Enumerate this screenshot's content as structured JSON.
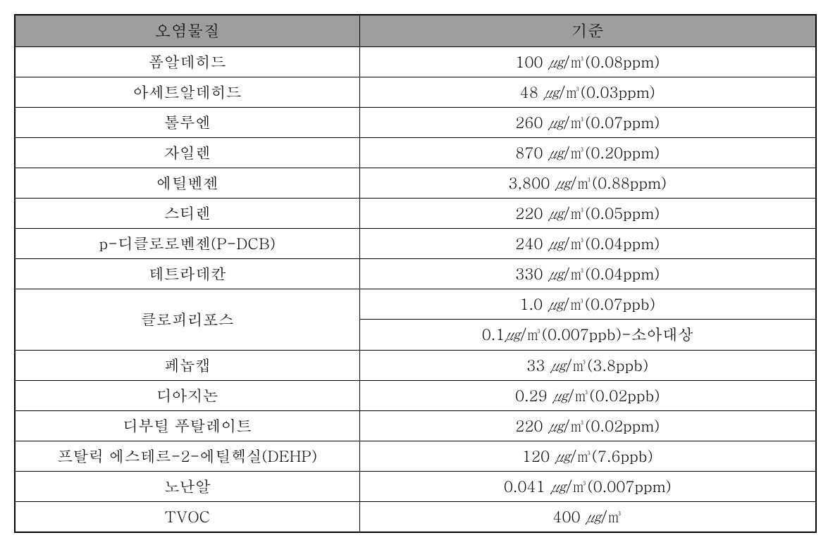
{
  "table": {
    "header_bg": "#9e9e9e",
    "border_color": "#000000",
    "columns": [
      {
        "key": "pollutant",
        "label": "오염물질",
        "width_pct": 43
      },
      {
        "key": "standard",
        "label": "기준",
        "width_pct": 57
      }
    ],
    "rows_flat": [
      {
        "pollutant": "폼알데히드",
        "value": "100",
        "unit": "㎍/㎥",
        "extra": "(0.08ppm)"
      },
      {
        "pollutant": "아세트알데히드",
        "value": "48",
        "unit": "㎍/㎥",
        "extra": "(0.03ppm)"
      },
      {
        "pollutant": "톨루엔",
        "value": "260",
        "unit": "㎍/㎥",
        "extra": "(0.07ppm)"
      },
      {
        "pollutant": "자일렌",
        "value": "870",
        "unit": "㎍/㎥",
        "extra": "(0.20ppm)"
      },
      {
        "pollutant": "에틸벤젠",
        "value": "3,800",
        "unit": "㎍/㎥",
        "extra": "(0.88ppm)"
      },
      {
        "pollutant": "스티렌",
        "value": "220",
        "unit": "㎍/㎥",
        "extra": "(0.05ppm)"
      },
      {
        "pollutant": "p-디클로로벤젠(P-DCB)",
        "value": "240",
        "unit": "㎍/㎥",
        "extra": "(0.04ppm)"
      },
      {
        "pollutant": "테트라데칸",
        "value": "330",
        "unit": "㎍/㎥",
        "extra": "(0.04ppm)"
      },
      {
        "pollutant": "페놉캡",
        "value": "33",
        "unit": "㎍/㎥",
        "extra": "(3.8ppb)"
      },
      {
        "pollutant": "디아지논",
        "value": "0.29",
        "unit": "㎍/㎥",
        "extra": "(0.02ppb)"
      },
      {
        "pollutant": "디부틸 푸탈레이트",
        "value": "220",
        "unit": "㎍/㎥",
        "extra": "(0.02ppm)"
      },
      {
        "pollutant": "프탈릭 에스테르-2-에틸헥실(DEHP)",
        "value": "120",
        "unit": "㎍/㎥",
        "extra": "(7.6ppb)"
      },
      {
        "pollutant": "노난알",
        "value": "0.041",
        "unit": "㎍/㎥",
        "extra": "(0.007ppm)"
      },
      {
        "pollutant": "TVOC",
        "value": "400",
        "unit": "㎍/㎥",
        "extra": ""
      }
    ],
    "special_row": {
      "pollutant": "클로피리포스",
      "std1": {
        "value": "1.0",
        "unit": "㎍/㎥",
        "extra": "(0.07ppb)"
      },
      "std2": {
        "value_unit": "0.1㎍/㎥",
        "extra": "(0.007ppb)-소아대상"
      }
    },
    "insert_special_after_index": 8
  }
}
